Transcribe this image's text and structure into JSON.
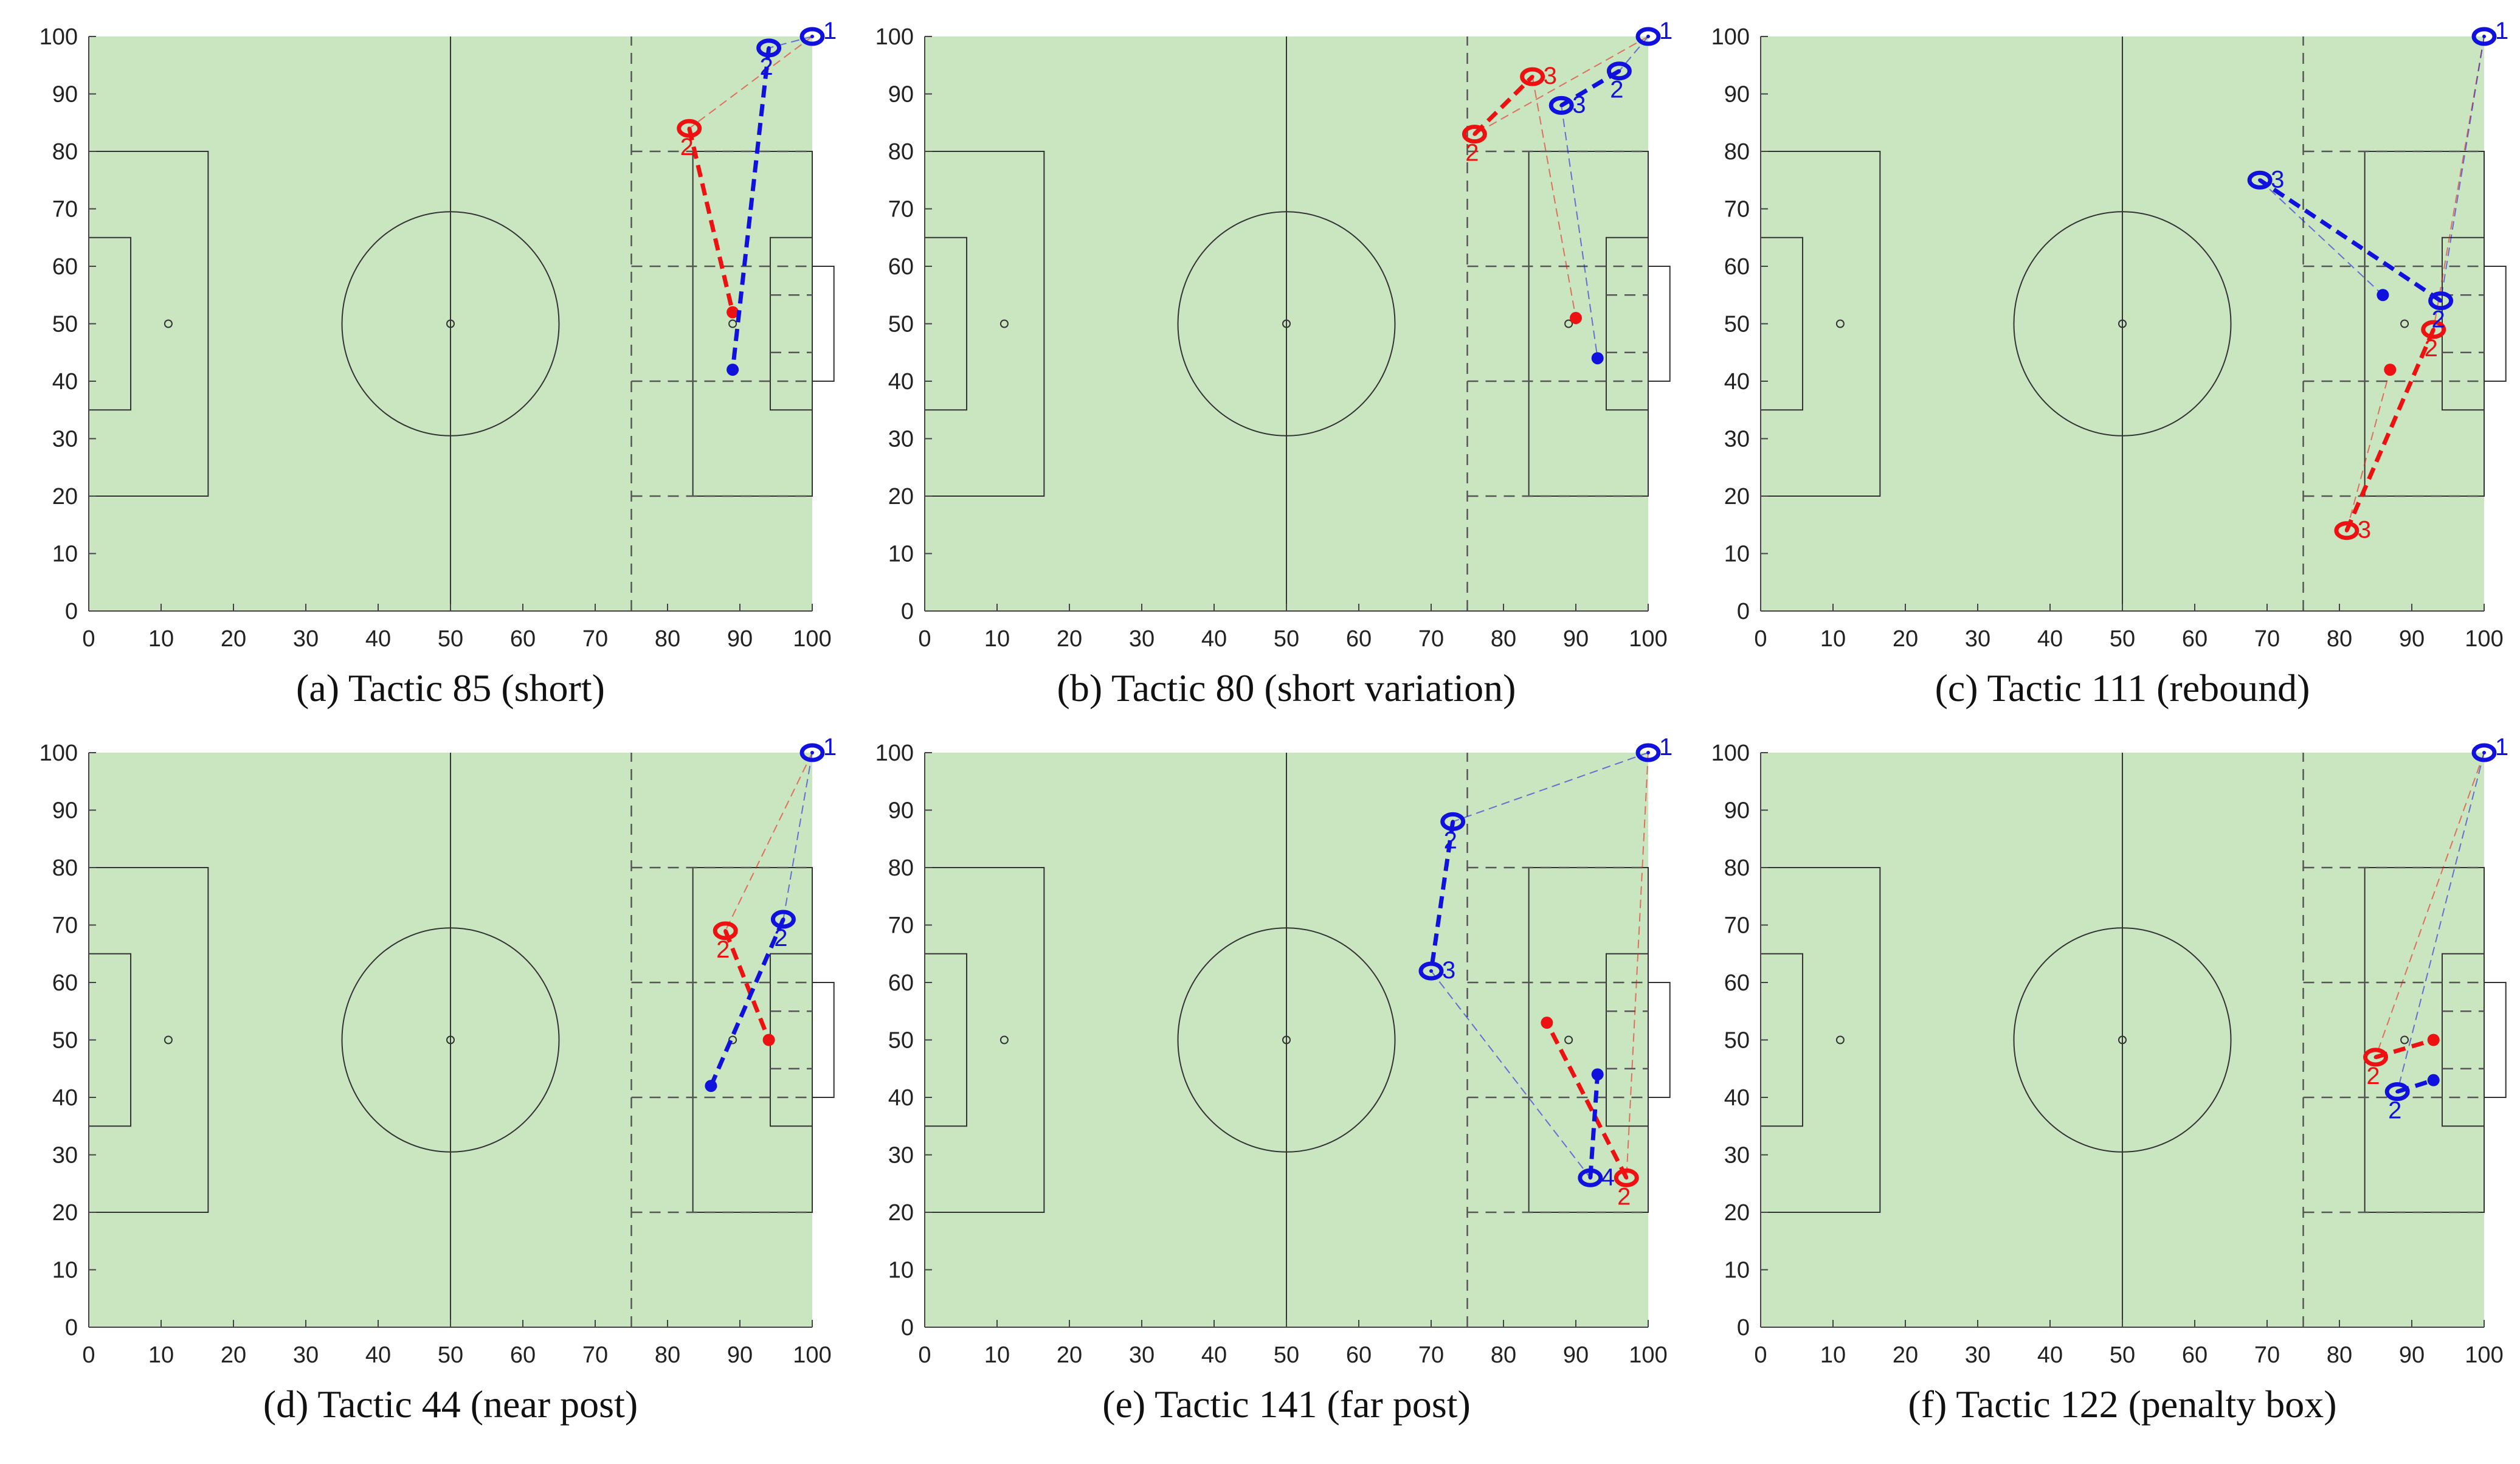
{
  "colors": {
    "pitch": "#c9e6c0",
    "lines": "#333333",
    "dashed_lines": "#555555",
    "team_red": "#ee1111",
    "team_blue": "#1111dd",
    "text": "#111111"
  },
  "chart_data": [
    {
      "type": "scatter",
      "caption": "(a) Tactic 85 (short)",
      "xlim": [
        0,
        100
      ],
      "ylim": [
        0,
        100
      ],
      "xticks": [
        0,
        10,
        20,
        30,
        40,
        50,
        60,
        70,
        80,
        90,
        100
      ],
      "yticks": [
        0,
        10,
        20,
        30,
        40,
        50,
        60,
        70,
        80,
        90,
        100
      ],
      "grid": false,
      "series": [
        {
          "team": "red",
          "color": "#ee1111",
          "markers": [
            {
              "x": 83,
              "y": 84,
              "label": "2"
            }
          ],
          "end": {
            "x": 89,
            "y": 52
          },
          "thin_lines": [
            [
              [
                100,
                100
              ],
              [
                83,
                84
              ]
            ]
          ],
          "thick_lines": [
            [
              [
                83,
                84
              ],
              [
                89,
                52
              ]
            ]
          ]
        },
        {
          "team": "blue",
          "color": "#1111dd",
          "markers": [
            {
              "x": 100,
              "y": 100,
              "label": "1"
            },
            {
              "x": 94,
              "y": 98,
              "label": "2"
            }
          ],
          "end": {
            "x": 89,
            "y": 42
          },
          "thin_lines": [
            [
              [
                100,
                100
              ],
              [
                94,
                98
              ]
            ]
          ],
          "thick_lines": [
            [
              [
                94,
                98
              ],
              [
                89,
                42
              ]
            ]
          ]
        }
      ]
    },
    {
      "type": "scatter",
      "caption": "(b) Tactic 80 (short variation)",
      "xlim": [
        0,
        100
      ],
      "ylim": [
        0,
        100
      ],
      "xticks": [
        0,
        10,
        20,
        30,
        40,
        50,
        60,
        70,
        80,
        90,
        100
      ],
      "yticks": [
        0,
        10,
        20,
        30,
        40,
        50,
        60,
        70,
        80,
        90,
        100
      ],
      "grid": false,
      "series": [
        {
          "team": "red",
          "color": "#ee1111",
          "markers": [
            {
              "x": 76,
              "y": 83,
              "label": "2"
            },
            {
              "x": 84,
              "y": 93,
              "label": "3"
            }
          ],
          "end": {
            "x": 90,
            "y": 51
          },
          "thin_lines": [
            [
              [
                100,
                100
              ],
              [
                76,
                83
              ]
            ],
            [
              [
                84,
                93
              ],
              [
                90,
                51
              ]
            ]
          ],
          "thick_lines": [
            [
              [
                76,
                83
              ],
              [
                84,
                93
              ]
            ]
          ]
        },
        {
          "team": "blue",
          "color": "#1111dd",
          "markers": [
            {
              "x": 100,
              "y": 100,
              "label": "1"
            },
            {
              "x": 96,
              "y": 94,
              "label": "2"
            },
            {
              "x": 88,
              "y": 88,
              "label": "3"
            }
          ],
          "end": {
            "x": 93,
            "y": 44
          },
          "thin_lines": [
            [
              [
                100,
                100
              ],
              [
                96,
                94
              ]
            ],
            [
              [
                88,
                88
              ],
              [
                93,
                44
              ]
            ]
          ],
          "thick_lines": [
            [
              [
                96,
                94
              ],
              [
                88,
                88
              ]
            ]
          ]
        }
      ]
    },
    {
      "type": "scatter",
      "caption": "(c) Tactic 111 (rebound)",
      "xlim": [
        0,
        100
      ],
      "ylim": [
        0,
        100
      ],
      "xticks": [
        0,
        10,
        20,
        30,
        40,
        50,
        60,
        70,
        80,
        90,
        100
      ],
      "yticks": [
        0,
        10,
        20,
        30,
        40,
        50,
        60,
        70,
        80,
        90,
        100
      ],
      "grid": false,
      "series": [
        {
          "team": "red",
          "color": "#ee1111",
          "markers": [
            {
              "x": 93,
              "y": 49,
              "label": "2"
            },
            {
              "x": 81,
              "y": 14,
              "label": "3"
            }
          ],
          "end": {
            "x": 87,
            "y": 42
          },
          "thin_lines": [
            [
              [
                100,
                100
              ],
              [
                93,
                49
              ]
            ],
            [
              [
                81,
                14
              ],
              [
                87,
                42
              ]
            ]
          ],
          "thick_lines": [
            [
              [
                93,
                49
              ],
              [
                81,
                14
              ]
            ]
          ]
        },
        {
          "team": "blue",
          "color": "#1111dd",
          "markers": [
            {
              "x": 100,
              "y": 100,
              "label": "1"
            },
            {
              "x": 94,
              "y": 54,
              "label": "2"
            },
            {
              "x": 69,
              "y": 75,
              "label": "3"
            }
          ],
          "end": {
            "x": 86,
            "y": 55
          },
          "thin_lines": [
            [
              [
                100,
                100
              ],
              [
                94,
                54
              ]
            ],
            [
              [
                69,
                75
              ],
              [
                86,
                55
              ]
            ]
          ],
          "thick_lines": [
            [
              [
                94,
                54
              ],
              [
                69,
                75
              ]
            ]
          ]
        }
      ]
    },
    {
      "type": "scatter",
      "caption": "(d) Tactic 44 (near post)",
      "xlim": [
        0,
        100
      ],
      "ylim": [
        0,
        100
      ],
      "xticks": [
        0,
        10,
        20,
        30,
        40,
        50,
        60,
        70,
        80,
        90,
        100
      ],
      "yticks": [
        0,
        10,
        20,
        30,
        40,
        50,
        60,
        70,
        80,
        90,
        100
      ],
      "grid": false,
      "series": [
        {
          "team": "red",
          "color": "#ee1111",
          "markers": [
            {
              "x": 88,
              "y": 69,
              "label": "2"
            }
          ],
          "end": {
            "x": 94,
            "y": 50
          },
          "thin_lines": [
            [
              [
                100,
                100
              ],
              [
                88,
                69
              ]
            ]
          ],
          "thick_lines": [
            [
              [
                88,
                69
              ],
              [
                94,
                50
              ]
            ]
          ]
        },
        {
          "team": "blue",
          "color": "#1111dd",
          "markers": [
            {
              "x": 100,
              "y": 100,
              "label": "1"
            },
            {
              "x": 96,
              "y": 71,
              "label": "2"
            }
          ],
          "end": {
            "x": 86,
            "y": 42
          },
          "thin_lines": [
            [
              [
                100,
                100
              ],
              [
                96,
                71
              ]
            ]
          ],
          "thick_lines": [
            [
              [
                96,
                71
              ],
              [
                86,
                42
              ]
            ]
          ]
        }
      ]
    },
    {
      "type": "scatter",
      "caption": "(e) Tactic 141 (far post)",
      "xlim": [
        0,
        100
      ],
      "ylim": [
        0,
        100
      ],
      "xticks": [
        0,
        10,
        20,
        30,
        40,
        50,
        60,
        70,
        80,
        90,
        100
      ],
      "yticks": [
        0,
        10,
        20,
        30,
        40,
        50,
        60,
        70,
        80,
        90,
        100
      ],
      "grid": false,
      "series": [
        {
          "team": "red",
          "color": "#ee1111",
          "markers": [
            {
              "x": 97,
              "y": 26,
              "label": "2"
            }
          ],
          "end": {
            "x": 86,
            "y": 53
          },
          "thin_lines": [
            [
              [
                100,
                100
              ],
              [
                97,
                26
              ]
            ]
          ],
          "thick_lines": [
            [
              [
                97,
                26
              ],
              [
                86,
                53
              ]
            ]
          ]
        },
        {
          "team": "blue",
          "color": "#1111dd",
          "markers": [
            {
              "x": 100,
              "y": 100,
              "label": "1"
            },
            {
              "x": 73,
              "y": 88,
              "label": "2"
            },
            {
              "x": 70,
              "y": 62,
              "label": "3"
            },
            {
              "x": 92,
              "y": 26,
              "label": "4"
            }
          ],
          "end": {
            "x": 93,
            "y": 44
          },
          "thin_lines": [
            [
              [
                100,
                100
              ],
              [
                73,
                88
              ]
            ],
            [
              [
                70,
                62
              ],
              [
                92,
                26
              ]
            ]
          ],
          "thick_lines": [
            [
              [
                73,
                88
              ],
              [
                70,
                62
              ]
            ],
            [
              [
                92,
                26
              ],
              [
                93,
                44
              ]
            ]
          ]
        }
      ]
    },
    {
      "type": "scatter",
      "caption": "(f) Tactic 122 (penalty box)",
      "xlim": [
        0,
        100
      ],
      "ylim": [
        0,
        100
      ],
      "xticks": [
        0,
        10,
        20,
        30,
        40,
        50,
        60,
        70,
        80,
        90,
        100
      ],
      "yticks": [
        0,
        10,
        20,
        30,
        40,
        50,
        60,
        70,
        80,
        90,
        100
      ],
      "grid": false,
      "series": [
        {
          "team": "red",
          "color": "#ee1111",
          "markers": [
            {
              "x": 85,
              "y": 47,
              "label": "2"
            }
          ],
          "end": {
            "x": 93,
            "y": 50
          },
          "thin_lines": [
            [
              [
                100,
                100
              ],
              [
                85,
                47
              ]
            ]
          ],
          "thick_lines": [
            [
              [
                85,
                47
              ],
              [
                93,
                50
              ]
            ]
          ]
        },
        {
          "team": "blue",
          "color": "#1111dd",
          "markers": [
            {
              "x": 100,
              "y": 100,
              "label": "1"
            },
            {
              "x": 88,
              "y": 41,
              "label": "2"
            }
          ],
          "end": {
            "x": 93,
            "y": 43
          },
          "thin_lines": [
            [
              [
                100,
                100
              ],
              [
                88,
                41
              ]
            ]
          ],
          "thick_lines": [
            [
              [
                88,
                41
              ],
              [
                93,
                43
              ]
            ]
          ]
        }
      ]
    }
  ]
}
